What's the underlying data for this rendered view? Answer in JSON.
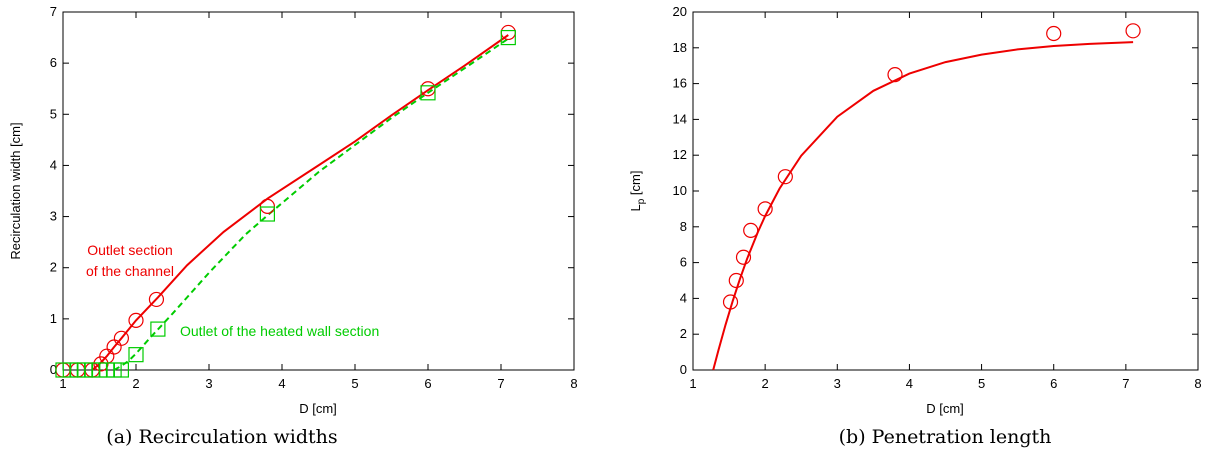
{
  "chart_data": [
    {
      "type": "scatter",
      "caption": "(a) Recirculation widths",
      "xlabel": "D  [cm]",
      "ylabel": "Recirculation width   [cm]",
      "xlim": [
        1,
        8
      ],
      "ylim": [
        0,
        7
      ],
      "xticks": [
        "1",
        "2",
        "3",
        "4",
        "5",
        "6",
        "7",
        "8"
      ],
      "yticks": [
        "0",
        "1",
        "2",
        "3",
        "4",
        "5",
        "6",
        "7"
      ],
      "grid": false,
      "annotations": [
        {
          "lines": [
            "Outlet section",
            "of the channel"
          ],
          "color": "#ee0000"
        },
        {
          "lines": [
            "Outlet of the heated wall section"
          ],
          "color": "#00cc00"
        }
      ],
      "series": [
        {
          "color": "#ee0000",
          "marker": "circle",
          "line": "solid",
          "x": [
            1.0,
            1.2,
            1.4,
            1.52,
            1.6,
            1.7,
            1.8,
            2.0,
            2.28,
            3.8,
            6.0,
            7.1
          ],
          "y": [
            0.0,
            0.0,
            0.0,
            0.12,
            0.27,
            0.45,
            0.62,
            0.97,
            1.38,
            3.2,
            5.5,
            6.6
          ],
          "curve_x": [
            1.4,
            1.5,
            1.6,
            1.7,
            1.8,
            2.0,
            2.3,
            2.7,
            3.2,
            3.8,
            4.5,
            5.0,
            5.5,
            6.0,
            6.5,
            7.1
          ],
          "curve_y": [
            0.0,
            0.12,
            0.27,
            0.45,
            0.62,
            0.97,
            1.42,
            2.05,
            2.7,
            3.35,
            4.0,
            4.47,
            4.98,
            5.47,
            5.95,
            6.55
          ]
        },
        {
          "color": "#00cc00",
          "marker": "square",
          "line": "dashed",
          "x": [
            1.0,
            1.1,
            1.2,
            1.3,
            1.4,
            1.5,
            1.6,
            1.7,
            1.8,
            2.0,
            2.3,
            3.8,
            6.0,
            7.1
          ],
          "y": [
            0.0,
            0.0,
            0.0,
            0.0,
            0.0,
            0.0,
            0.0,
            0.0,
            0.0,
            0.3,
            0.8,
            3.05,
            5.42,
            6.5
          ],
          "curve_x": [
            1.7,
            1.8,
            1.9,
            2.0,
            2.2,
            2.5,
            3.0,
            3.5,
            3.8,
            4.5,
            5.0,
            5.5,
            6.0,
            6.5,
            7.1
          ],
          "curve_y": [
            0.0,
            0.08,
            0.18,
            0.32,
            0.64,
            1.1,
            1.9,
            2.65,
            3.02,
            3.87,
            4.4,
            4.93,
            5.42,
            5.9,
            6.48
          ]
        }
      ]
    },
    {
      "type": "scatter",
      "caption": "(b) Penetration length",
      "xlabel": "D  [cm]",
      "ylabel": "L",
      "ylabel_sub": "p",
      "ylabel_unit": " [cm]",
      "xlim": [
        1,
        8
      ],
      "ylim": [
        0,
        20
      ],
      "xticks": [
        "1",
        "2",
        "3",
        "4",
        "5",
        "6",
        "7",
        "8"
      ],
      "yticks": [
        "0",
        "2",
        "4",
        "6",
        "8",
        "10",
        "12",
        "14",
        "16",
        "18",
        "20"
      ],
      "grid": false,
      "series": [
        {
          "color": "#ee0000",
          "marker": "circle",
          "line": "solid",
          "x": [
            1.52,
            1.6,
            1.7,
            1.8,
            2.0,
            2.28,
            3.8,
            6.0,
            7.1
          ],
          "y": [
            3.8,
            5.0,
            6.3,
            7.8,
            9.0,
            10.8,
            16.5,
            18.8,
            18.95
          ],
          "curve_x": [
            1.28,
            1.35,
            1.45,
            1.55,
            1.65,
            1.75,
            1.9,
            2.0,
            2.2,
            2.5,
            3.0,
            3.5,
            4.0,
            4.5,
            5.0,
            5.5,
            6.0,
            6.5,
            7.1
          ],
          "curve_y": [
            0.0,
            1.07,
            2.52,
            3.85,
            5.08,
            6.21,
            7.71,
            8.6,
            10.14,
            11.97,
            14.15,
            15.6,
            16.56,
            17.2,
            17.62,
            17.91,
            18.1,
            18.22,
            18.32
          ]
        }
      ]
    }
  ]
}
